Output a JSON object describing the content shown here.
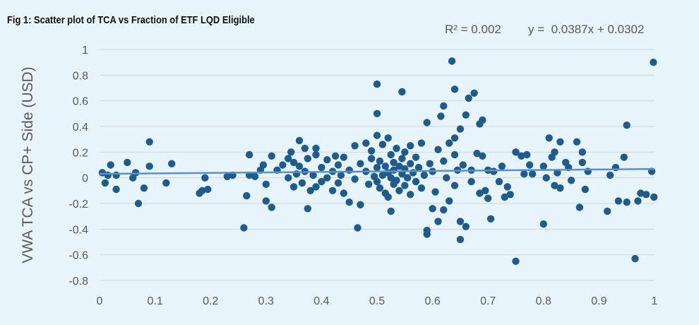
{
  "figure": {
    "title": "Fig 1: Scatter plot of TCA vs Fraction of ETF LQD Eligible"
  },
  "chart_data": {
    "type": "scatter",
    "title": "Fig 1: Scatter plot of TCA vs Fraction of ETF LQD Eligible",
    "xlabel": "",
    "ylabel": "VWA TCA vs CP+ Side (USD)",
    "xlim": [
      0,
      1
    ],
    "ylim": [
      -0.8,
      1
    ],
    "x_ticks": [
      "0",
      "0.1",
      "0.2",
      "0.3",
      "0.4",
      "0.5",
      "0.6",
      "0.7",
      "0.8",
      "0.9",
      "1"
    ],
    "y_ticks": [
      "1",
      "0.8",
      "0.6",
      "0.4",
      "0.2",
      "0",
      "-0.2",
      "-0.4",
      "-0.6",
      "-0.8"
    ],
    "x_tick_values": [
      0,
      0.1,
      0.2,
      0.3,
      0.4,
      0.5,
      0.6,
      0.7,
      0.8,
      0.9,
      1
    ],
    "y_tick_values": [
      1,
      0.8,
      0.6,
      0.4,
      0.2,
      0,
      -0.2,
      -0.4,
      -0.6,
      -0.8
    ],
    "grid": "horizontal",
    "colors": {
      "points": "#1f5c8b",
      "trendline": "#5b8fc9",
      "grid": "#d4d4d4",
      "tick_text": "#595959"
    },
    "annotations": {
      "r_squared": "R² = 0.002",
      "equation": "y =  0.0387x + 0.0302"
    },
    "trendline": {
      "slope": 0.0387,
      "intercept": 0.0302
    },
    "points": [
      [
        0.005,
        0.04
      ],
      [
        0.01,
        -0.04
      ],
      [
        0.015,
        0.02
      ],
      [
        0.02,
        0.1
      ],
      [
        0.03,
        0.02
      ],
      [
        0.03,
        -0.09
      ],
      [
        0.05,
        0.12
      ],
      [
        0.06,
        0.0
      ],
      [
        0.065,
        0.04
      ],
      [
        0.07,
        -0.2
      ],
      [
        0.08,
        -0.08
      ],
      [
        0.09,
        0.28
      ],
      [
        0.09,
        0.09
      ],
      [
        0.12,
        -0.04
      ],
      [
        0.13,
        0.11
      ],
      [
        0.18,
        -0.12
      ],
      [
        0.185,
        -0.1
      ],
      [
        0.19,
        0.0
      ],
      [
        0.195,
        -0.09
      ],
      [
        0.23,
        0.01
      ],
      [
        0.24,
        0.02
      ],
      [
        0.26,
        -0.39
      ],
      [
        0.265,
        -0.14
      ],
      [
        0.27,
        0.18
      ],
      [
        0.27,
        0.02
      ],
      [
        0.28,
        0.01
      ],
      [
        0.29,
        0.06
      ],
      [
        0.295,
        0.1
      ],
      [
        0.3,
        -0.18
      ],
      [
        0.3,
        -0.05
      ],
      [
        0.31,
        -0.23
      ],
      [
        0.31,
        0.17
      ],
      [
        0.32,
        0.06
      ],
      [
        0.33,
        0.1
      ],
      [
        0.34,
        0.0
      ],
      [
        0.34,
        0.15
      ],
      [
        0.345,
        0.2
      ],
      [
        0.35,
        -0.07
      ],
      [
        0.35,
        0.12
      ],
      [
        0.355,
        0.03
      ],
      [
        0.36,
        0.29
      ],
      [
        0.36,
        0.09
      ],
      [
        0.365,
        -0.04
      ],
      [
        0.37,
        0.23
      ],
      [
        0.37,
        0.05
      ],
      [
        0.375,
        -0.24
      ],
      [
        0.375,
        0.15
      ],
      [
        0.38,
        -0.1
      ],
      [
        0.385,
        0.02
      ],
      [
        0.39,
        0.18
      ],
      [
        0.39,
        0.23
      ],
      [
        0.39,
        -0.07
      ],
      [
        0.4,
        0.08
      ],
      [
        0.4,
        -0.03
      ],
      [
        0.41,
        0.14
      ],
      [
        0.41,
        0.0
      ],
      [
        0.42,
        0.05
      ],
      [
        0.42,
        -0.1
      ],
      [
        0.425,
        0.17
      ],
      [
        0.43,
        0.1
      ],
      [
        0.43,
        -0.04
      ],
      [
        0.435,
        0.02
      ],
      [
        0.44,
        0.16
      ],
      [
        0.44,
        -0.12
      ],
      [
        0.45,
        0.06
      ],
      [
        0.45,
        -0.19
      ],
      [
        0.46,
        0.25
      ],
      [
        0.46,
        -0.01
      ],
      [
        0.47,
        0.11
      ],
      [
        0.47,
        -0.21
      ],
      [
        0.465,
        -0.39
      ],
      [
        0.48,
        0.27
      ],
      [
        0.48,
        0.05
      ],
      [
        0.485,
        -0.05
      ],
      [
        0.49,
        0.21
      ],
      [
        0.49,
        0.15
      ],
      [
        0.495,
        0.01
      ],
      [
        0.5,
        0.73
      ],
      [
        0.5,
        0.5
      ],
      [
        0.5,
        0.33
      ],
      [
        0.5,
        0.08
      ],
      [
        0.5,
        -0.03
      ],
      [
        0.505,
        0.13
      ],
      [
        0.505,
        -0.08
      ],
      [
        0.51,
        0.26
      ],
      [
        0.51,
        0.02
      ],
      [
        0.515,
        -0.12
      ],
      [
        0.515,
        0.09
      ],
      [
        0.52,
        0.31
      ],
      [
        0.52,
        0.04
      ],
      [
        0.52,
        -0.15
      ],
      [
        0.525,
        0.18
      ],
      [
        0.525,
        -0.26
      ],
      [
        0.525,
        0.0
      ],
      [
        0.53,
        0.12
      ],
      [
        0.53,
        -0.05
      ],
      [
        0.53,
        0.06
      ],
      [
        0.535,
        0.23
      ],
      [
        0.535,
        -0.02
      ],
      [
        0.54,
        0.09
      ],
      [
        0.54,
        -0.1
      ],
      [
        0.545,
        0.67
      ],
      [
        0.545,
        0.15
      ],
      [
        0.545,
        0.03
      ],
      [
        0.55,
        0.2
      ],
      [
        0.55,
        -0.06
      ],
      [
        0.55,
        0.07
      ],
      [
        0.555,
        0.0
      ],
      [
        0.56,
        0.25
      ],
      [
        0.56,
        0.11
      ],
      [
        0.56,
        -0.13
      ],
      [
        0.565,
        0.04
      ],
      [
        0.57,
        0.16
      ],
      [
        0.57,
        -0.03
      ],
      [
        0.575,
        0.08
      ],
      [
        0.58,
        0.27
      ],
      [
        0.58,
        -0.08
      ],
      [
        0.585,
        0.02
      ],
      [
        0.59,
        0.43
      ],
      [
        0.59,
        -0.41
      ],
      [
        0.59,
        -0.44
      ],
      [
        0.595,
        0.11
      ],
      [
        0.6,
        -0.24
      ],
      [
        0.6,
        0.05
      ],
      [
        0.605,
        -0.11
      ],
      [
        0.61,
        0.22
      ],
      [
        0.61,
        -0.34
      ],
      [
        0.615,
        0.48
      ],
      [
        0.62,
        0.56
      ],
      [
        0.62,
        -0.25
      ],
      [
        0.62,
        0.13
      ],
      [
        0.625,
        0.0
      ],
      [
        0.63,
        0.27
      ],
      [
        0.63,
        -0.18
      ],
      [
        0.635,
        0.91
      ],
      [
        0.64,
        0.69
      ],
      [
        0.64,
        0.31
      ],
      [
        0.64,
        0.18
      ],
      [
        0.64,
        -0.06
      ],
      [
        0.645,
        0.06
      ],
      [
        0.65,
        0.38
      ],
      [
        0.65,
        -0.48
      ],
      [
        0.65,
        -0.34
      ],
      [
        0.655,
        0.1
      ],
      [
        0.66,
        0.49
      ],
      [
        0.66,
        -0.38
      ],
      [
        0.665,
        0.62
      ],
      [
        0.67,
        0.06
      ],
      [
        0.67,
        -0.03
      ],
      [
        0.675,
        0.66
      ],
      [
        0.68,
        0.19
      ],
      [
        0.685,
        -0.12
      ],
      [
        0.685,
        0.42
      ],
      [
        0.69,
        0.45
      ],
      [
        0.69,
        0.17
      ],
      [
        0.695,
        -0.1
      ],
      [
        0.7,
        0.06
      ],
      [
        0.7,
        -0.16
      ],
      [
        0.705,
        -0.32
      ],
      [
        0.71,
        0.05
      ],
      [
        0.72,
        -0.03
      ],
      [
        0.725,
        0.09
      ],
      [
        0.73,
        -0.15
      ],
      [
        0.735,
        -0.07
      ],
      [
        0.74,
        -0.13
      ],
      [
        0.75,
        0.2
      ],
      [
        0.75,
        -0.65
      ],
      [
        0.76,
        0.17
      ],
      [
        0.765,
        0.03
      ],
      [
        0.77,
        0.18
      ],
      [
        0.775,
        0.1
      ],
      [
        0.78,
        0.03
      ],
      [
        0.8,
        -0.36
      ],
      [
        0.8,
        0.09
      ],
      [
        0.805,
        0.0
      ],
      [
        0.81,
        0.31
      ],
      [
        0.815,
        0.16
      ],
      [
        0.82,
        0.2
      ],
      [
        0.82,
        -0.06
      ],
      [
        0.825,
        0.04
      ],
      [
        0.83,
        0.28
      ],
      [
        0.83,
        -0.08
      ],
      [
        0.84,
        0.12
      ],
      [
        0.845,
        0.08
      ],
      [
        0.85,
        -0.02
      ],
      [
        0.86,
        0.28
      ],
      [
        0.865,
        -0.23
      ],
      [
        0.87,
        0.2
      ],
      [
        0.87,
        0.12
      ],
      [
        0.875,
        -0.09
      ],
      [
        0.88,
        0.05
      ],
      [
        0.915,
        -0.26
      ],
      [
        0.92,
        0.02
      ],
      [
        0.93,
        0.08
      ],
      [
        0.935,
        -0.18
      ],
      [
        0.945,
        0.16
      ],
      [
        0.95,
        0.41
      ],
      [
        0.95,
        -0.19
      ],
      [
        0.965,
        -0.63
      ],
      [
        0.97,
        -0.18
      ],
      [
        0.975,
        -0.12
      ],
      [
        0.985,
        -0.13
      ],
      [
        0.995,
        0.05
      ],
      [
        0.998,
        0.9
      ],
      [
        0.999,
        -0.15
      ]
    ]
  }
}
